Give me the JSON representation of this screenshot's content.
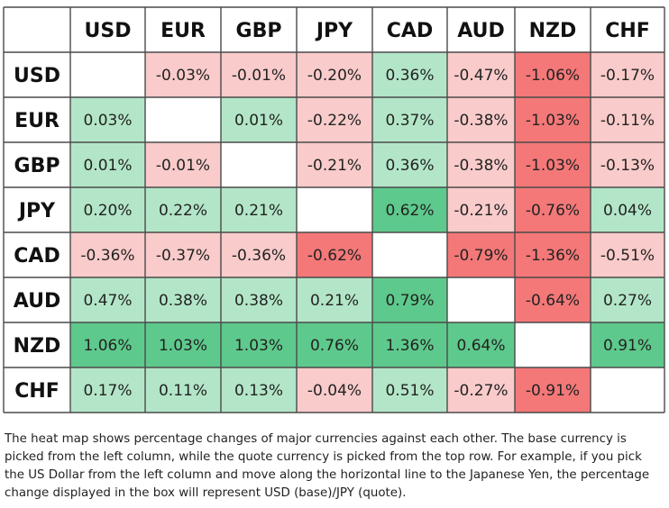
{
  "chart_data": {
    "type": "heatmap",
    "currencies": [
      "USD",
      "EUR",
      "GBP",
      "JPY",
      "CAD",
      "AUD",
      "NZD",
      "CHF"
    ],
    "values": [
      [
        null,
        "-0.03%",
        "-0.01%",
        "-0.20%",
        "0.36%",
        "-0.47%",
        "-1.06%",
        "-0.17%"
      ],
      [
        "0.03%",
        null,
        "0.01%",
        "-0.22%",
        "0.37%",
        "-0.38%",
        "-1.03%",
        "-0.11%"
      ],
      [
        "0.01%",
        "-0.01%",
        null,
        "-0.21%",
        "0.36%",
        "-0.38%",
        "-1.03%",
        "-0.13%"
      ],
      [
        "0.20%",
        "0.22%",
        "0.21%",
        null,
        "0.62%",
        "-0.21%",
        "-0.76%",
        "0.04%"
      ],
      [
        "-0.36%",
        "-0.37%",
        "-0.36%",
        "-0.62%",
        null,
        "-0.79%",
        "-1.36%",
        "-0.51%"
      ],
      [
        "0.47%",
        "0.38%",
        "0.38%",
        "0.21%",
        "0.79%",
        null,
        "-0.64%",
        "0.27%"
      ],
      [
        "1.06%",
        "1.03%",
        "1.03%",
        "0.76%",
        "1.36%",
        "0.64%",
        null,
        "0.91%"
      ],
      [
        "0.17%",
        "0.11%",
        "0.13%",
        "-0.04%",
        "0.51%",
        "-0.27%",
        "-0.91%",
        null
      ]
    ],
    "colors": {
      "positive_light": "#b3e6c8",
      "positive_strong": "#5ec98c",
      "negative_light": "#f9cbcb",
      "negative_strong": "#f47878",
      "empty": "#ffffff",
      "grid": "#4a4a4a"
    }
  },
  "caption": "The heat map shows percentage changes of major currencies against each other. The base currency is picked from the left column, while the quote currency is picked from the top row. For example, if you pick the US Dollar from the left column and move along the horizontal line to the Japanese Yen, the percentage change displayed in the box will represent USD (base)/JPY (quote)."
}
